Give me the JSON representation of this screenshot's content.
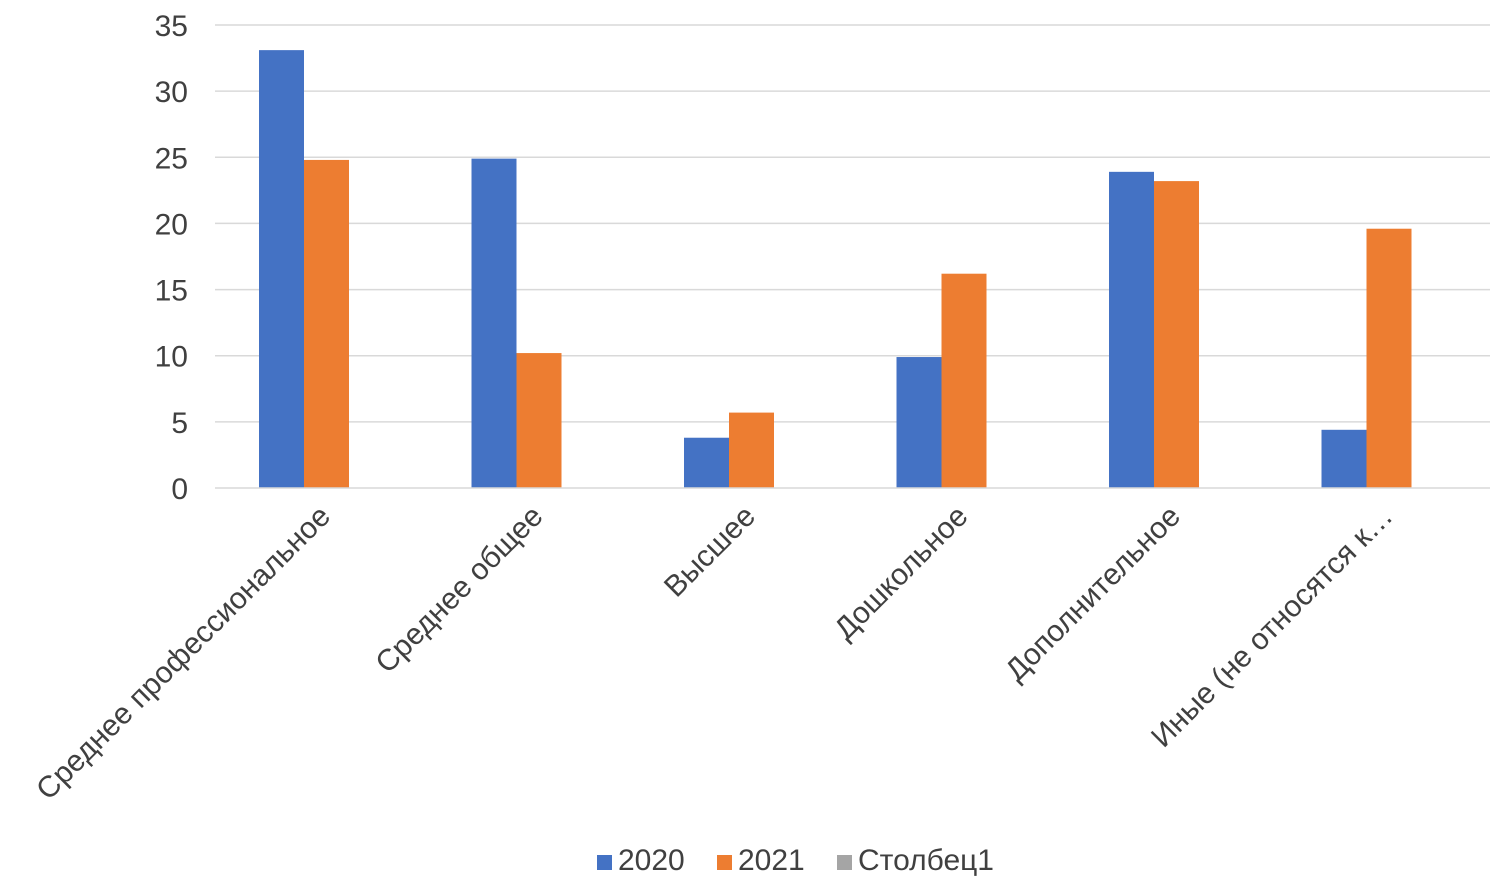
{
  "chart_data": {
    "type": "bar",
    "categories": [
      "Среднее профессиональное",
      "Среднее общее",
      "Высшее",
      "Дошкольное",
      "Дополнительное",
      "Иные (не относятся к…"
    ],
    "series": [
      {
        "name": "2020",
        "color": "#4472C4",
        "values": [
          33.1,
          24.9,
          3.8,
          9.9,
          23.9,
          4.4
        ]
      },
      {
        "name": "2021",
        "color": "#ED7D31",
        "values": [
          24.8,
          10.2,
          5.7,
          16.2,
          23.2,
          19.6
        ]
      },
      {
        "name": "Столбец1",
        "color": "#A5A5A5",
        "values": [
          0,
          0,
          0,
          0,
          0,
          0
        ]
      }
    ],
    "ylim": [
      0,
      35
    ],
    "yticks": [
      0,
      5,
      10,
      15,
      20,
      25,
      30,
      35
    ],
    "grid": true,
    "legend_position": "bottom",
    "title": "",
    "xlabel": "",
    "ylabel": ""
  }
}
